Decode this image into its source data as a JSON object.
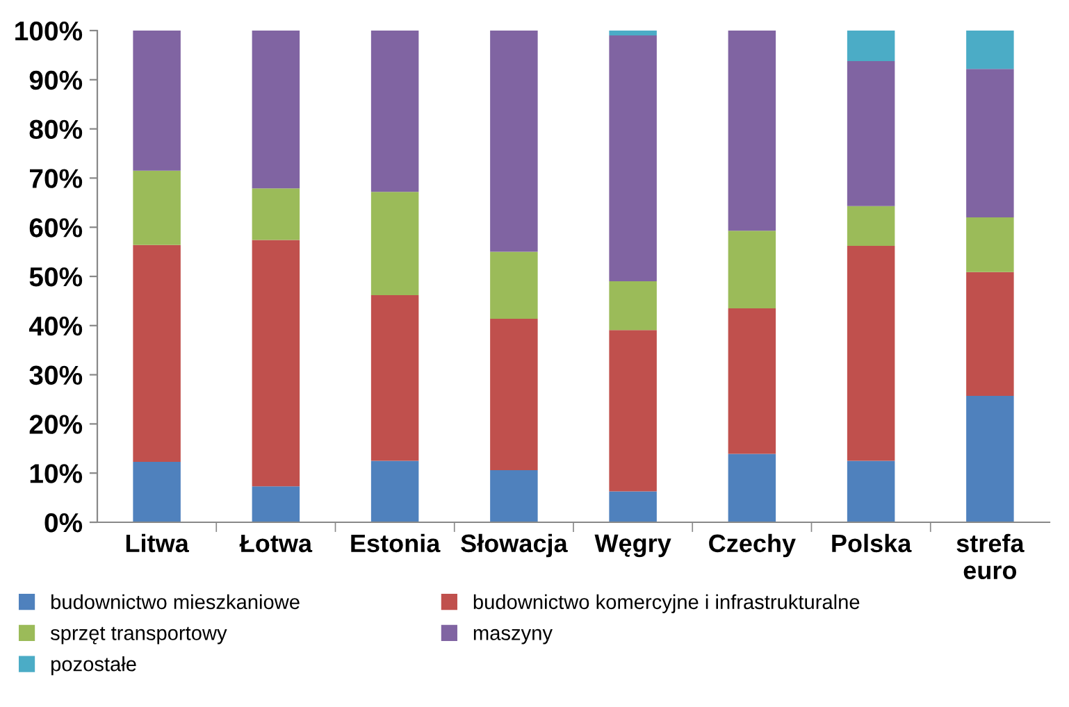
{
  "chart_data": {
    "type": "bar",
    "stacked": true,
    "categories": [
      "Litwa",
      "Łotwa",
      "Estonia",
      "Słowacja",
      "Węgry",
      "Czechy",
      "Polska",
      "strefa\neuro"
    ],
    "series": [
      {
        "name": "budownictwo mieszkaniowe",
        "color": "#4f81bd",
        "values": [
          12.3,
          7.3,
          12.5,
          10.6,
          6.3,
          13.9,
          12.5,
          25.7
        ]
      },
      {
        "name": "budownictwo komercyjne i infrastrukturalne",
        "color": "#c0504d",
        "values": [
          44.1,
          50.1,
          33.7,
          30.8,
          32.8,
          29.6,
          43.7,
          25.2
        ]
      },
      {
        "name": "sprzęt transportowy",
        "color": "#9bbb59",
        "values": [
          15.1,
          10.5,
          21.0,
          13.6,
          9.9,
          15.8,
          8.1,
          11.1
        ]
      },
      {
        "name": "maszyny",
        "color": "#8064a2",
        "values": [
          28.5,
          32.1,
          32.8,
          45.0,
          50.0,
          40.7,
          29.5,
          30.2
        ]
      },
      {
        "name": "pozostałe",
        "color": "#4bacc6",
        "values": [
          0,
          0,
          0,
          0,
          1.0,
          0,
          6.2,
          7.8
        ]
      }
    ],
    "ylim": [
      0,
      100
    ],
    "yticks": [
      {
        "value": 0,
        "label": "0%"
      },
      {
        "value": 10,
        "label": "10%"
      },
      {
        "value": 20,
        "label": "20%"
      },
      {
        "value": 30,
        "label": "30%"
      },
      {
        "value": 40,
        "label": "40%"
      },
      {
        "value": 50,
        "label": "50%"
      },
      {
        "value": 60,
        "label": "60%"
      },
      {
        "value": 70,
        "label": "70%"
      },
      {
        "value": 80,
        "label": "80%"
      },
      {
        "value": 90,
        "label": "90%"
      },
      {
        "value": 100,
        "label": "100%"
      }
    ],
    "grid": false,
    "legend": "bottom"
  }
}
